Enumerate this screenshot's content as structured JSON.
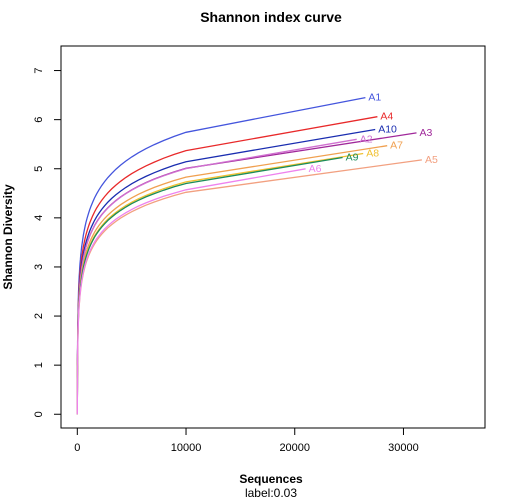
{
  "chart_data": {
    "type": "line",
    "title": "Shannon index curve",
    "xlabel": "Sequences",
    "ylabel": "Shannon Diversity",
    "subtitle": "label:0.03",
    "xlim": [
      -1500,
      37500
    ],
    "ylim": [
      -0.28,
      7.5
    ],
    "xticks": [
      0,
      10000,
      20000,
      30000
    ],
    "yticks": [
      0,
      1,
      2,
      3,
      4,
      5,
      6,
      7
    ],
    "grid": false,
    "legend": "none",
    "series": [
      {
        "name": "A1",
        "color": "#4455dd",
        "max_x": 26500,
        "final": 6.45
      },
      {
        "name": "A4",
        "color": "#e8292a",
        "max_x": 27600,
        "final": 6.06
      },
      {
        "name": "A10",
        "color": "#1a2db0",
        "max_x": 27400,
        "final": 5.8
      },
      {
        "name": "A3",
        "color": "#a0289a",
        "max_x": 31200,
        "final": 5.73
      },
      {
        "name": "A2",
        "color": "#d070d0",
        "max_x": 25700,
        "final": 5.6
      },
      {
        "name": "A7",
        "color": "#f0a050",
        "max_x": 28500,
        "final": 5.47
      },
      {
        "name": "A8",
        "color": "#f0c030",
        "max_x": 26300,
        "final": 5.31
      },
      {
        "name": "A9",
        "color": "#1b8c5a",
        "max_x": 24400,
        "final": 5.23
      },
      {
        "name": "A5",
        "color": "#f2a080",
        "max_x": 31700,
        "final": 5.18
      },
      {
        "name": "A6",
        "color": "#ee82ee",
        "max_x": 21000,
        "final": 5.0
      }
    ]
  }
}
